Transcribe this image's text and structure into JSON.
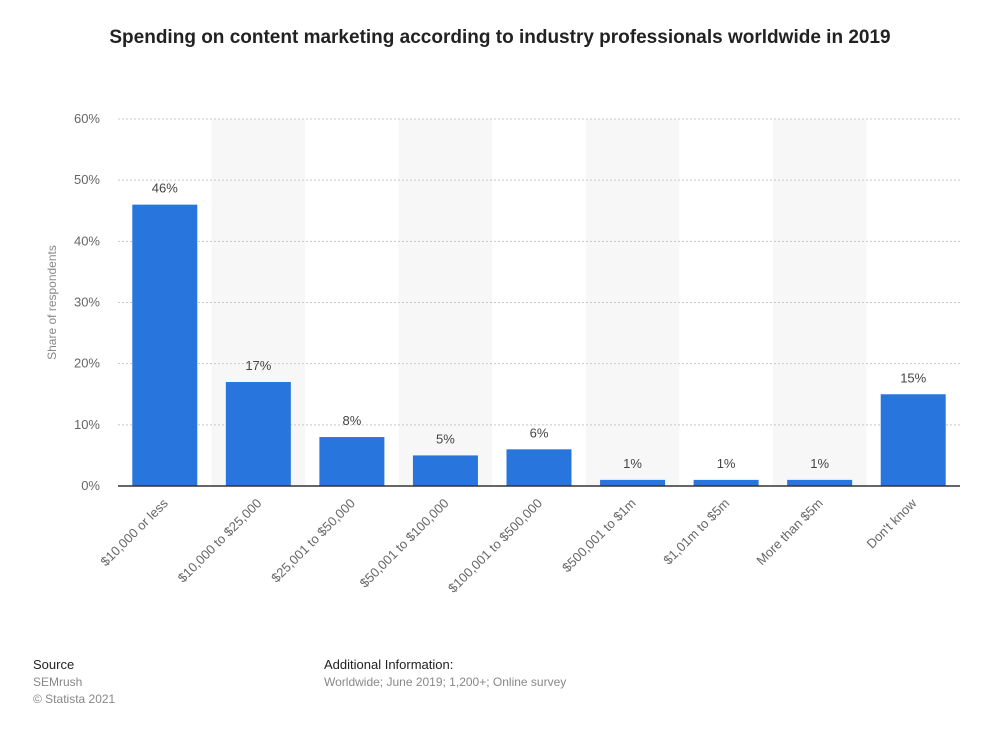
{
  "chart_data": {
    "type": "bar",
    "title": "Spending on content marketing according to industry professionals worldwide in 2019",
    "ylabel": "Share of respondents",
    "xlabel": "",
    "ylim": [
      0,
      60
    ],
    "yticks": [
      "0%",
      "10%",
      "20%",
      "30%",
      "40%",
      "50%",
      "60%"
    ],
    "categories": [
      "$10,000 or less",
      "$10,000 to $25,000",
      "$25,001 to $50,000",
      "$50,001 to $100,000",
      "$100,001 to $500,000",
      "$500,001 to $1m",
      "$1,01m to $5m",
      "More than $5m",
      "Don't know"
    ],
    "values": [
      46,
      17,
      8,
      5,
      6,
      1,
      1,
      1,
      15
    ],
    "value_labels": [
      "46%",
      "17%",
      "8%",
      "5%",
      "6%",
      "1%",
      "1%",
      "1%",
      "15%"
    ],
    "bar_color": "#2876dd",
    "grid": true,
    "legend": "none"
  },
  "footer": {
    "source_heading": "Source",
    "source_name": "SEMrush",
    "copyright": "© Statista 2021",
    "info_heading": "Additional Information:",
    "info_text": "Worldwide; June 2019; 1,200+; Online survey"
  }
}
